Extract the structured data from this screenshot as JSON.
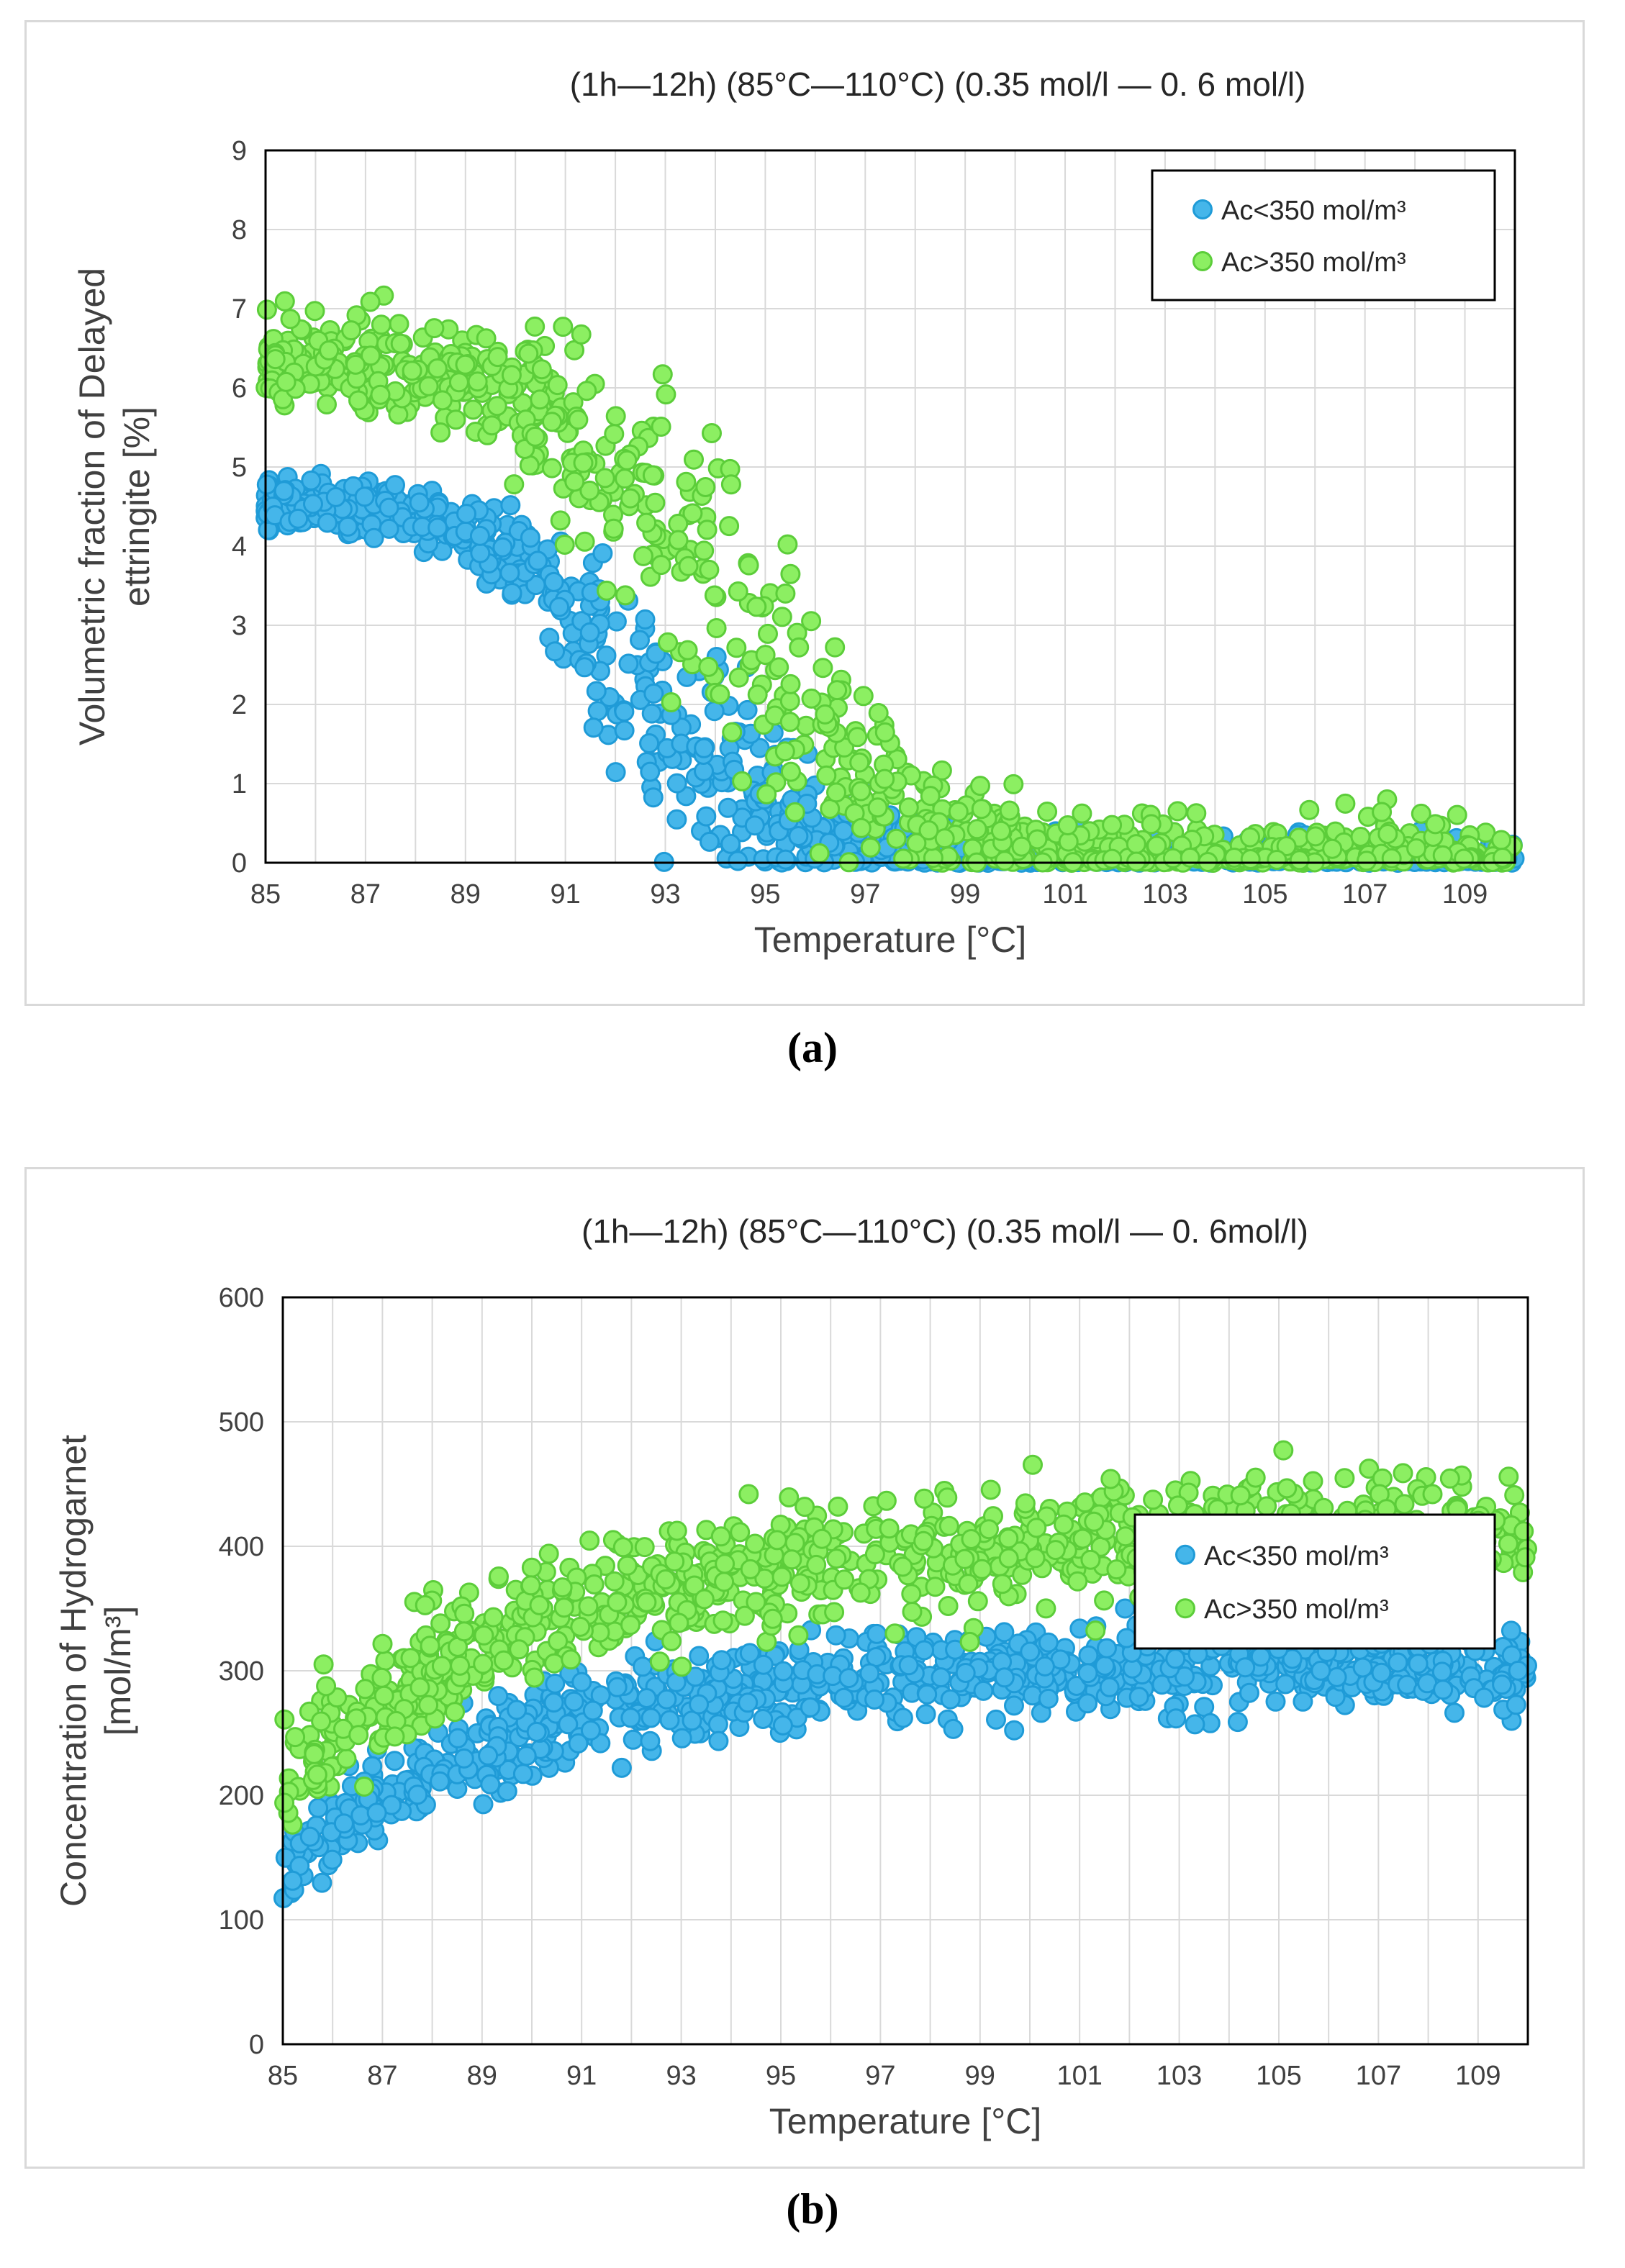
{
  "chart_data": [
    {
      "id": "a",
      "type": "scatter",
      "title": "(1h—12h) (85°C—110°C) (0.35 mol/l — 0. 6 mol/l)",
      "xlabel": "Temperature [°C]",
      "ylabel_lines": [
        "Volumetric fraction of Delayed",
        "ettringite [%]"
      ],
      "xlim": [
        85,
        110
      ],
      "ylim": [
        0,
        9
      ],
      "xticks": [
        "85",
        "87",
        "89",
        "91",
        "93",
        "95",
        "97",
        "99",
        "101",
        "103",
        "105",
        "107",
        "109"
      ],
      "yticks": [
        "0",
        "1",
        "2",
        "3",
        "4",
        "5",
        "6",
        "7",
        "8",
        "9"
      ],
      "legend_position": "top-right",
      "series": [
        {
          "name": "Ac<350 mol/m³",
          "color": "#45b6ea",
          "trend": "decreasing",
          "points_est": 900
        },
        {
          "name": "Ac>350 mol/m³",
          "color": "#8cef62",
          "trend": "decreasing",
          "points_est": 900
        }
      ]
    },
    {
      "id": "b",
      "type": "scatter",
      "title": "(1h—12h) (85°C—110°C) (0.35 mol/l — 0. 6mol/l)",
      "xlabel": "Temperature [°C]",
      "ylabel_lines": [
        "Concentration of Hydrogarnet",
        "[mol/m³]"
      ],
      "xlim": [
        85,
        110
      ],
      "ylim": [
        0,
        600
      ],
      "xticks": [
        "85",
        "87",
        "89",
        "91",
        "93",
        "95",
        "97",
        "99",
        "101",
        "103",
        "105",
        "107",
        "109"
      ],
      "yticks": [
        "0",
        "100",
        "200",
        "300",
        "400",
        "500",
        "600"
      ],
      "legend_position": "top-right",
      "series": [
        {
          "name": "Ac<350 mol/m³",
          "color": "#45b6ea",
          "trend": "increasing",
          "points_est": 900
        },
        {
          "name": "Ac>350 mol/m³",
          "color": "#8cef62",
          "trend": "increasing",
          "points_est": 900
        }
      ]
    }
  ],
  "captions": {
    "a": "(a)",
    "b": "(b)"
  },
  "colors": {
    "blue_fill": "#45b6ea",
    "blue_edge": "#1f9bd7",
    "green_fill": "#8cef62",
    "green_edge": "#5ccd3a"
  }
}
